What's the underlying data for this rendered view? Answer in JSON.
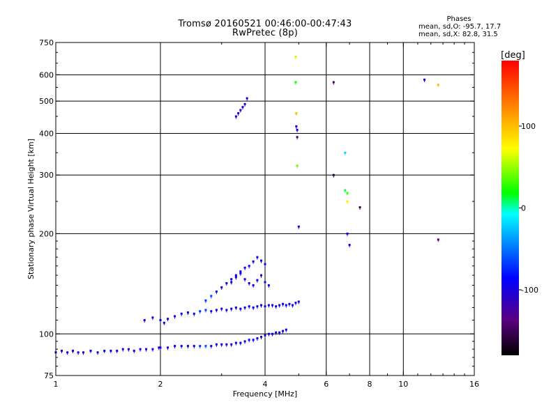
{
  "header": {
    "title_line1": "Tromsø 20160521 00:46:00-00:47:43",
    "title_line2": "RwPretec (8p)"
  },
  "phases": {
    "title": "Phases",
    "line_o": "mean, sd,O: -95.7, 17.7",
    "line_x": "mean, sd,X:  82.8, 31.5"
  },
  "chart_data": {
    "type": "scatter",
    "title": "Tromsø 20160521 00:46:00-00:47:43",
    "subtitle": "RwPretec (8p)",
    "xlabel": "Frequency [MHz]",
    "ylabel": "Stationary phase Virtual Height [km]",
    "xscale": "log",
    "yscale": "log",
    "xlim": [
      1,
      16
    ],
    "ylim": [
      75,
      750
    ],
    "x_ticks": [
      1,
      2,
      4,
      6,
      8,
      10,
      16
    ],
    "x_tick_labels": [
      "1",
      "2",
      "4",
      "6",
      "8",
      "10",
      "16"
    ],
    "y_ticks": [
      75,
      100,
      200,
      300,
      400,
      500,
      600,
      750
    ],
    "y_tick_labels": [
      "75",
      "100",
      "200",
      "300",
      "400",
      "500",
      "600",
      "750"
    ],
    "x_gridlines": [
      2,
      4,
      6,
      8,
      10
    ],
    "y_gridlines": [
      100,
      200,
      300,
      400,
      500,
      600
    ],
    "grid": true,
    "colorbar": {
      "label": "[deg]",
      "min": -180,
      "max": 180,
      "ticks": [
        100,
        0,
        -100
      ],
      "tick_labels": [
        "100",
        "0",
        "-100"
      ],
      "colors": [
        "#000000",
        "#5a0080",
        "#0000ff",
        "#00a0ff",
        "#00ffff",
        "#00ff00",
        "#ffff00",
        "#ff8000",
        "#ff0000"
      ]
    },
    "series": [
      {
        "trace": "low-E",
        "x": [
          1.0,
          1.04,
          1.08,
          1.12,
          1.16,
          1.2,
          1.26,
          1.32,
          1.38,
          1.44,
          1.5,
          1.56,
          1.62,
          1.68,
          1.75,
          1.82,
          1.9,
          1.98
        ],
        "y": [
          88,
          89,
          88,
          89,
          88,
          88,
          89,
          88,
          89,
          89,
          89,
          90,
          90,
          89,
          90,
          90,
          90,
          91
        ],
        "phase": [
          -95,
          -100,
          -92,
          -98,
          -105,
          -96,
          -90,
          -100,
          -95,
          -88,
          -99,
          -94,
          -102,
          -97,
          -93,
          -100,
          -96,
          -98
        ]
      },
      {
        "trace": "E-main",
        "x": [
          2.0,
          2.1,
          2.2,
          2.3,
          2.4,
          2.5,
          2.6,
          2.7,
          2.8,
          2.9,
          3.0,
          3.1,
          3.2,
          3.3,
          3.4,
          3.5,
          3.6,
          3.7,
          3.8,
          3.9,
          4.0,
          4.1,
          4.2,
          4.3,
          4.4,
          4.5,
          4.6
        ],
        "y": [
          91,
          91,
          92,
          92,
          92,
          92,
          92,
          92,
          92,
          93,
          93,
          93,
          93,
          94,
          94,
          95,
          96,
          96,
          97,
          98,
          99,
          100,
          100,
          101,
          101,
          102,
          103
        ],
        "phase": [
          -95,
          -100,
          -92,
          -85,
          -98,
          -90,
          -70,
          -60,
          -95,
          -100,
          -92,
          -98,
          -105,
          -96,
          -90,
          -100,
          -95,
          -88,
          -99,
          -94,
          -102,
          -97,
          -93,
          -100,
          -96,
          -98,
          -90
        ]
      },
      {
        "trace": "Es-1",
        "x": [
          1.8,
          1.9,
          2.0,
          2.05,
          2.1,
          2.2,
          2.3,
          2.4,
          2.5,
          2.6,
          2.7,
          2.8,
          2.9,
          3.0,
          3.1,
          3.2,
          3.3,
          3.4,
          3.5,
          3.6,
          3.7,
          3.8,
          3.9,
          4.0,
          4.1,
          4.2,
          4.3,
          4.4,
          4.5,
          4.6,
          4.7,
          4.8,
          4.9,
          5.0
        ],
        "y": [
          110,
          112,
          110,
          108,
          111,
          113,
          115,
          116,
          115,
          117,
          118,
          117,
          118,
          119,
          118,
          119,
          120,
          119,
          120,
          121,
          120,
          121,
          122,
          121,
          122,
          122,
          121,
          122,
          123,
          122,
          123,
          122,
          124,
          125
        ],
        "phase": [
          -95,
          -100,
          -92,
          -98,
          -105,
          -96,
          -90,
          -100,
          -95,
          -70,
          -65,
          -99,
          -94,
          -102,
          -97,
          -93,
          -100,
          -96,
          -98,
          -90,
          -95,
          -100,
          -92,
          -98,
          -105,
          -96,
          -90,
          -100,
          -95,
          -88,
          -99,
          -94,
          -102,
          -97
        ]
      },
      {
        "trace": "F-rise",
        "x": [
          2.7,
          2.8,
          2.9,
          3.0,
          3.1,
          3.2,
          3.3,
          3.4,
          3.5,
          3.6,
          3.7,
          3.8,
          3.9,
          4.0
        ],
        "y": [
          126,
          130,
          134,
          138,
          142,
          146,
          150,
          154,
          158,
          160,
          165,
          170,
          166,
          162
        ],
        "phase": [
          -70,
          -65,
          -80,
          -95,
          -100,
          -92,
          -98,
          -105,
          -96,
          -90,
          -100,
          -95,
          -88,
          -99
        ]
      },
      {
        "trace": "F-cluster",
        "x": [
          3.2,
          3.3,
          3.4,
          3.5,
          3.6,
          3.7,
          3.8,
          3.9,
          4.0,
          4.1
        ],
        "y": [
          143,
          148,
          152,
          146,
          142,
          140,
          145,
          150,
          143,
          140
        ],
        "phase": [
          -95,
          -100,
          -92,
          -98,
          -105,
          -96,
          -90,
          -100,
          -95,
          -88
        ]
      },
      {
        "trace": "F-high",
        "x": [
          3.3,
          3.35,
          3.4,
          3.45,
          3.5,
          3.55
        ],
        "y": [
          450,
          460,
          470,
          480,
          490,
          510
        ],
        "phase": [
          -95,
          -100,
          -110,
          -98,
          -105,
          -96
        ]
      },
      {
        "trace": "scatter-5MHz",
        "x": [
          4.9,
          4.9,
          4.92,
          4.92,
          4.95,
          4.95,
          4.95,
          5.0
        ],
        "y": [
          680,
          570,
          460,
          420,
          410,
          390,
          320,
          210
        ],
        "phase": [
          60,
          20,
          100,
          -100,
          -95,
          -140,
          40,
          -100
        ]
      },
      {
        "trace": "scatter-6MHz",
        "x": [
          6.3,
          6.3,
          6.8,
          6.8,
          6.9,
          6.9,
          6.9,
          7.0,
          7.5
        ],
        "y": [
          570,
          300,
          350,
          270,
          265,
          250,
          200,
          185,
          240
        ],
        "phase": [
          -150,
          -160,
          -20,
          10,
          30,
          80,
          -100,
          -95,
          -150
        ]
      },
      {
        "trace": "scatter-far",
        "x": [
          11.5,
          12.6,
          12.6
        ],
        "y": [
          580,
          560,
          192
        ],
        "phase": [
          -90,
          100,
          -140
        ]
      }
    ]
  }
}
